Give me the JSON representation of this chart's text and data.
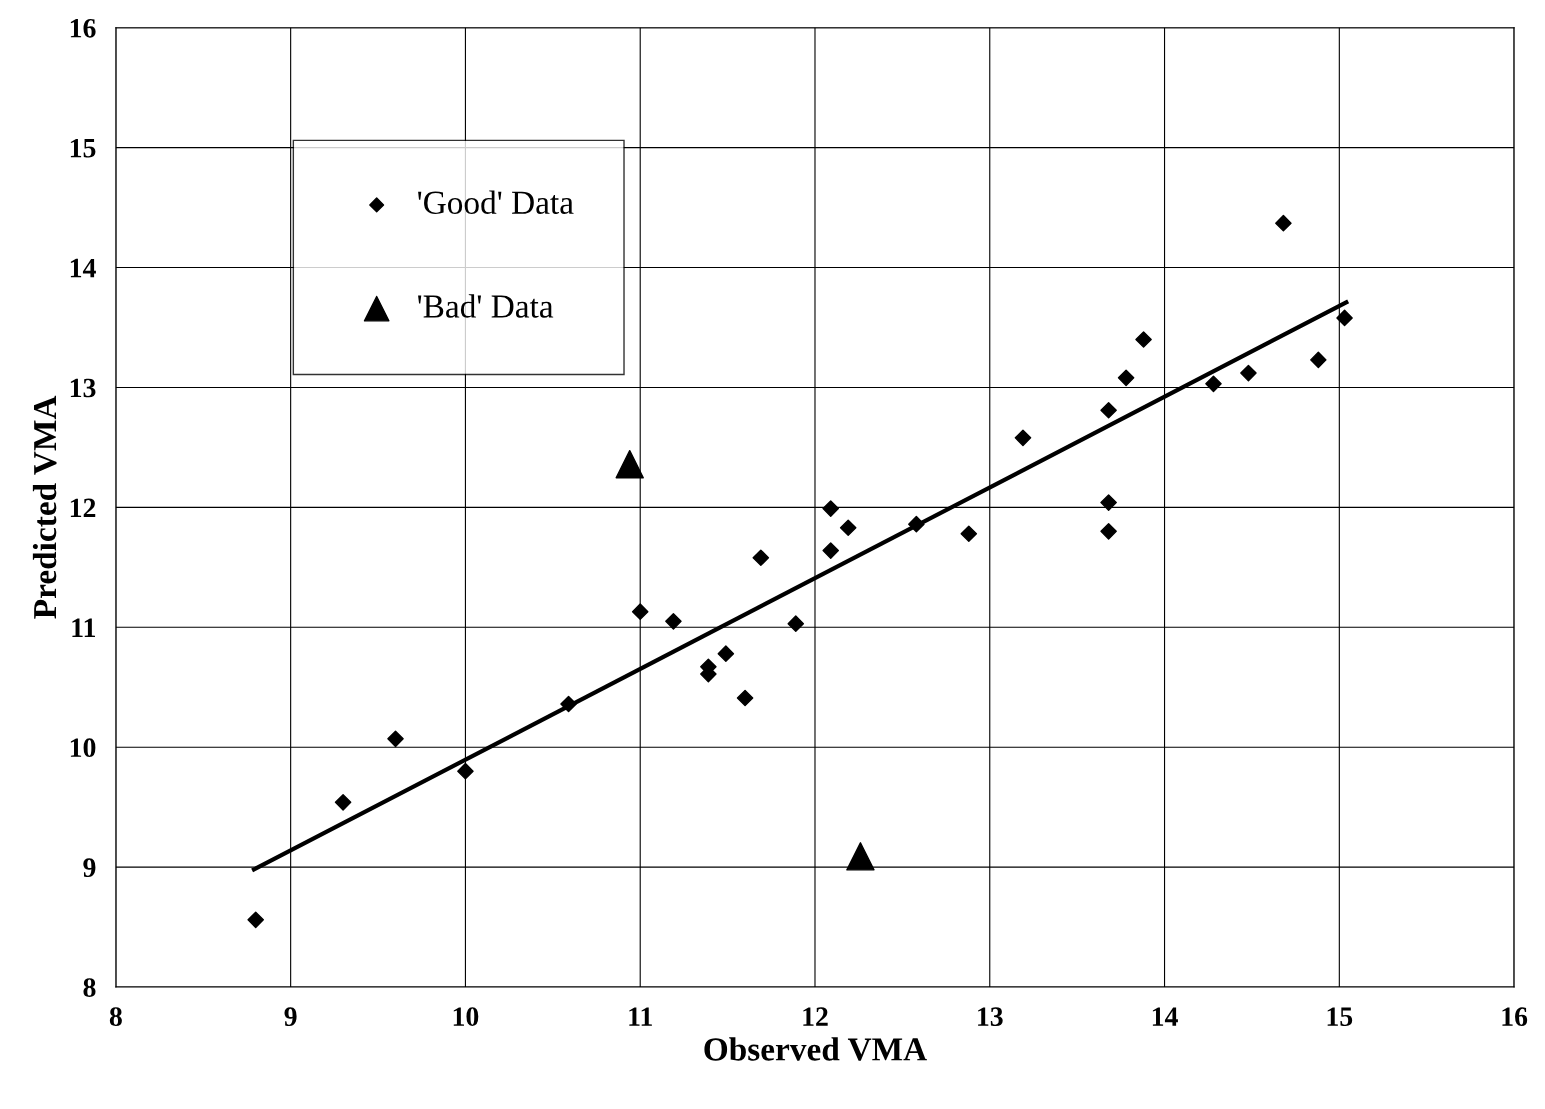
{
  "chart_data": {
    "type": "scatter",
    "xlabel": "Observed VMA",
    "ylabel": "Predicted VMA",
    "xlim": [
      8,
      16
    ],
    "ylim": [
      8,
      16
    ],
    "xticks": [
      8,
      9,
      10,
      11,
      12,
      13,
      14,
      15,
      16
    ],
    "yticks": [
      8,
      9,
      10,
      11,
      12,
      13,
      14,
      15,
      16
    ],
    "grid": true,
    "legend": "top left",
    "series": [
      {
        "name": "'Good' Data",
        "color": "#000000",
        "marker": "diamond",
        "x": [
          8.8,
          9.3,
          9.6,
          10.0,
          10.59,
          11.0,
          11.19,
          11.39,
          11.39,
          11.49,
          11.6,
          11.69,
          11.89,
          12.09,
          12.09,
          12.19,
          12.58,
          12.88,
          13.19,
          13.68,
          13.68,
          13.68,
          13.78,
          13.88,
          14.28,
          14.48,
          14.68,
          14.88,
          15.03
        ],
        "values": [
          8.56,
          9.54,
          10.07,
          9.8,
          10.36,
          11.13,
          11.05,
          10.67,
          10.61,
          10.78,
          10.41,
          11.58,
          11.03,
          11.99,
          11.64,
          11.83,
          11.86,
          11.78,
          12.58,
          12.81,
          12.04,
          11.8,
          13.08,
          13.4,
          13.03,
          13.12,
          14.37,
          13.23,
          13.58
        ]
      },
      {
        "name": "'Bad' Data",
        "color": "#000000",
        "marker": "triangle",
        "x": [
          10.94,
          12.26
        ],
        "values": [
          12.36,
          9.09
        ]
      },
      {
        "type": "line",
        "color": "#000000",
        "marker": "none",
        "line_style": "solid",
        "x": [
          8.79,
          15.04
        ],
        "values": [
          8.98,
          13.71
        ]
      }
    ]
  }
}
